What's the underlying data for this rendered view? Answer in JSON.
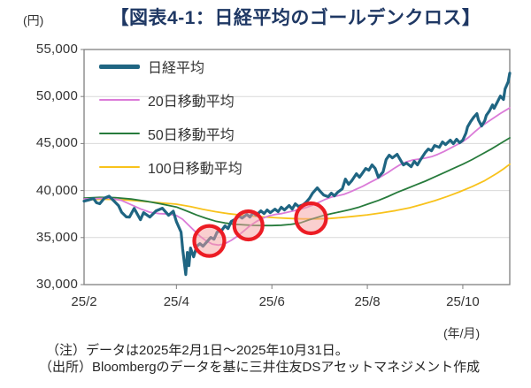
{
  "header": {
    "unit_label": "(円)",
    "title": "【図表4-1：日経平均のゴールデンクロス】",
    "title_color": "#1F3864"
  },
  "footer": {
    "note": "（注）データは2025年2月1日～2025年10月31日。",
    "source": "（出所）Bloombergのデータを基に三井住友DSアセットマネジメント作成"
  },
  "chart_data": {
    "type": "line",
    "title": "【図表4-1：日経平均のゴールデンクロス】",
    "ylabel": "(円)",
    "xlabel_unit": "(年/月)",
    "ylim": [
      30000,
      55000
    ],
    "grid": "horizontal-only",
    "grid_color": "#d9d9d9",
    "frame_color": "#7f7f7f",
    "legend_position": "top-left-inside",
    "x_note": "x = days since 2025-02-01 (data 2025/2/1 - 2025/10/31)",
    "x_range_days": [
      0,
      272
    ],
    "y_ticks": [
      {
        "value": 30000,
        "label": "30,000"
      },
      {
        "value": 35000,
        "label": "35,000"
      },
      {
        "value": 40000,
        "label": "40,000"
      },
      {
        "value": 45000,
        "label": "45,000"
      },
      {
        "value": 50000,
        "label": "50,000"
      },
      {
        "value": 55000,
        "label": "55,000"
      }
    ],
    "x_ticks": [
      {
        "day": 0,
        "label": "25/2"
      },
      {
        "day": 59,
        "label": "25/4"
      },
      {
        "day": 120,
        "label": "25/6"
      },
      {
        "day": 181,
        "label": "25/8"
      },
      {
        "day": 242,
        "label": "25/10"
      }
    ],
    "series": [
      {
        "name": "日経平均",
        "color": "#1f6582",
        "width": 3.2,
        "points": [
          [
            0,
            38870
          ],
          [
            3,
            39000
          ],
          [
            6,
            39150
          ],
          [
            8,
            38700
          ],
          [
            10,
            38600
          ],
          [
            13,
            39200
          ],
          [
            16,
            39400
          ],
          [
            19,
            38900
          ],
          [
            22,
            38400
          ],
          [
            24,
            37700
          ],
          [
            27,
            37200
          ],
          [
            29,
            37180
          ],
          [
            32,
            38100
          ],
          [
            36,
            36900
          ],
          [
            38,
            37650
          ],
          [
            42,
            37180
          ],
          [
            46,
            37840
          ],
          [
            50,
            38120
          ],
          [
            54,
            37370
          ],
          [
            57,
            37800
          ],
          [
            59,
            36700
          ],
          [
            62,
            35580
          ],
          [
            63,
            33780
          ],
          [
            65,
            31070
          ],
          [
            66,
            33420
          ],
          [
            67,
            32010
          ],
          [
            68,
            33890
          ],
          [
            70,
            32950
          ],
          [
            72,
            34080
          ],
          [
            74,
            34360
          ],
          [
            76,
            34080
          ],
          [
            79,
            34640
          ],
          [
            81,
            35020
          ],
          [
            83,
            34830
          ],
          [
            85,
            35580
          ],
          [
            88,
            35770
          ],
          [
            90,
            36240
          ],
          [
            92,
            35960
          ],
          [
            94,
            36700
          ],
          [
            97,
            36980
          ],
          [
            99,
            37270
          ],
          [
            101,
            37080
          ],
          [
            104,
            37460
          ],
          [
            106,
            37180
          ],
          [
            108,
            37650
          ],
          [
            110,
            37370
          ],
          [
            113,
            37840
          ],
          [
            115,
            37560
          ],
          [
            117,
            37930
          ],
          [
            119,
            37650
          ],
          [
            122,
            38030
          ],
          [
            124,
            37750
          ],
          [
            126,
            38220
          ],
          [
            128,
            37930
          ],
          [
            131,
            38400
          ],
          [
            133,
            38030
          ],
          [
            135,
            38590
          ],
          [
            137,
            38310
          ],
          [
            140,
            38500
          ],
          [
            142,
            38780
          ],
          [
            144,
            39150
          ],
          [
            146,
            39720
          ],
          [
            149,
            40280
          ],
          [
            151,
            39900
          ],
          [
            153,
            39530
          ],
          [
            156,
            39340
          ],
          [
            158,
            39720
          ],
          [
            160,
            39440
          ],
          [
            162,
            39810
          ],
          [
            165,
            40190
          ],
          [
            167,
            41220
          ],
          [
            169,
            40660
          ],
          [
            171,
            41030
          ],
          [
            174,
            41790
          ],
          [
            176,
            41410
          ],
          [
            178,
            41880
          ],
          [
            180,
            42350
          ],
          [
            182,
            42160
          ],
          [
            184,
            42730
          ],
          [
            186,
            42350
          ],
          [
            188,
            41410
          ],
          [
            191,
            41970
          ],
          [
            193,
            43290
          ],
          [
            195,
            43760
          ],
          [
            197,
            43480
          ],
          [
            200,
            43850
          ],
          [
            202,
            43290
          ],
          [
            204,
            42730
          ],
          [
            206,
            42920
          ],
          [
            209,
            42540
          ],
          [
            211,
            43100
          ],
          [
            213,
            42730
          ],
          [
            215,
            43290
          ],
          [
            218,
            44040
          ],
          [
            220,
            44420
          ],
          [
            222,
            44230
          ],
          [
            224,
            44790
          ],
          [
            227,
            44600
          ],
          [
            229,
            45170
          ],
          [
            231,
            44890
          ],
          [
            234,
            45360
          ],
          [
            236,
            44980
          ],
          [
            238,
            45450
          ],
          [
            240,
            45080
          ],
          [
            242,
            45360
          ],
          [
            244,
            46110
          ],
          [
            245,
            46770
          ],
          [
            247,
            47330
          ],
          [
            249,
            47800
          ],
          [
            251,
            48180
          ],
          [
            252,
            47520
          ],
          [
            254,
            46860
          ],
          [
            256,
            47420
          ],
          [
            257,
            47990
          ],
          [
            259,
            48460
          ],
          [
            261,
            49110
          ],
          [
            262,
            48740
          ],
          [
            264,
            49400
          ],
          [
            266,
            50050
          ],
          [
            268,
            49680
          ],
          [
            269,
            50800
          ],
          [
            271,
            51550
          ],
          [
            272,
            52490
          ]
        ]
      },
      {
        "name": "20日移動平均",
        "color": "#db7bd8",
        "width": 1.8,
        "points": [
          [
            0,
            39100
          ],
          [
            8,
            39150
          ],
          [
            16,
            39200
          ],
          [
            24,
            38950
          ],
          [
            30,
            38500
          ],
          [
            36,
            38050
          ],
          [
            42,
            37700
          ],
          [
            48,
            37550
          ],
          [
            54,
            37500
          ],
          [
            59,
            37350
          ],
          [
            63,
            36950
          ],
          [
            66,
            36450
          ],
          [
            70,
            35800
          ],
          [
            74,
            35150
          ],
          [
            78,
            34650
          ],
          [
            82,
            34300
          ],
          [
            86,
            34200
          ],
          [
            90,
            34350
          ],
          [
            94,
            34700
          ],
          [
            98,
            35150
          ],
          [
            102,
            35700
          ],
          [
            106,
            36250
          ],
          [
            110,
            36700
          ],
          [
            114,
            37050
          ],
          [
            118,
            37300
          ],
          [
            122,
            37450
          ],
          [
            126,
            37550
          ],
          [
            130,
            37700
          ],
          [
            134,
            37850
          ],
          [
            138,
            38000
          ],
          [
            142,
            38200
          ],
          [
            146,
            38450
          ],
          [
            150,
            38750
          ],
          [
            154,
            39050
          ],
          [
            158,
            39300
          ],
          [
            162,
            39450
          ],
          [
            166,
            39600
          ],
          [
            170,
            39850
          ],
          [
            174,
            40150
          ],
          [
            178,
            40450
          ],
          [
            182,
            40800
          ],
          [
            186,
            41150
          ],
          [
            190,
            41500
          ],
          [
            194,
            41900
          ],
          [
            198,
            42350
          ],
          [
            202,
            42750
          ],
          [
            206,
            43050
          ],
          [
            210,
            43250
          ],
          [
            214,
            43350
          ],
          [
            218,
            43450
          ],
          [
            222,
            43600
          ],
          [
            226,
            43850
          ],
          [
            230,
            44150
          ],
          [
            234,
            44500
          ],
          [
            238,
            44850
          ],
          [
            242,
            45200
          ],
          [
            246,
            45700
          ],
          [
            250,
            46300
          ],
          [
            254,
            46850
          ],
          [
            258,
            47300
          ],
          [
            262,
            47750
          ],
          [
            266,
            48200
          ],
          [
            269,
            48500
          ],
          [
            272,
            48800
          ]
        ]
      },
      {
        "name": "50日移動平均",
        "color": "#277b3c",
        "width": 1.8,
        "points": [
          [
            0,
            39200
          ],
          [
            10,
            39280
          ],
          [
            20,
            39250
          ],
          [
            30,
            39100
          ],
          [
            40,
            38850
          ],
          [
            50,
            38550
          ],
          [
            59,
            38250
          ],
          [
            66,
            37800
          ],
          [
            72,
            37400
          ],
          [
            78,
            37050
          ],
          [
            84,
            36750
          ],
          [
            90,
            36550
          ],
          [
            96,
            36420
          ],
          [
            102,
            36350
          ],
          [
            108,
            36300
          ],
          [
            114,
            36280
          ],
          [
            120,
            36280
          ],
          [
            126,
            36320
          ],
          [
            132,
            36400
          ],
          [
            138,
            36550
          ],
          [
            144,
            36900
          ],
          [
            148,
            37100
          ],
          [
            152,
            37300
          ],
          [
            158,
            37550
          ],
          [
            164,
            37750
          ],
          [
            170,
            37980
          ],
          [
            176,
            38250
          ],
          [
            182,
            38600
          ],
          [
            188,
            38950
          ],
          [
            194,
            39350
          ],
          [
            200,
            39800
          ],
          [
            206,
            40200
          ],
          [
            212,
            40600
          ],
          [
            218,
            41000
          ],
          [
            224,
            41450
          ],
          [
            230,
            41900
          ],
          [
            236,
            42350
          ],
          [
            242,
            42800
          ],
          [
            248,
            43300
          ],
          [
            254,
            43850
          ],
          [
            260,
            44400
          ],
          [
            266,
            45000
          ],
          [
            272,
            45600
          ]
        ]
      },
      {
        "name": "100日移動平均",
        "color": "#f8c21b",
        "width": 1.8,
        "points": [
          [
            0,
            39000
          ],
          [
            12,
            39080
          ],
          [
            24,
            39020
          ],
          [
            36,
            38880
          ],
          [
            48,
            38700
          ],
          [
            59,
            38550
          ],
          [
            68,
            38300
          ],
          [
            76,
            38000
          ],
          [
            84,
            37750
          ],
          [
            92,
            37550
          ],
          [
            100,
            37400
          ],
          [
            108,
            37280
          ],
          [
            116,
            37180
          ],
          [
            124,
            37100
          ],
          [
            132,
            37030
          ],
          [
            140,
            36980
          ],
          [
            148,
            36980
          ],
          [
            156,
            37020
          ],
          [
            164,
            37120
          ],
          [
            172,
            37260
          ],
          [
            181,
            37420
          ],
          [
            190,
            37620
          ],
          [
            199,
            37870
          ],
          [
            208,
            38170
          ],
          [
            216,
            38520
          ],
          [
            224,
            38920
          ],
          [
            232,
            39370
          ],
          [
            240,
            39870
          ],
          [
            248,
            40420
          ],
          [
            256,
            41050
          ],
          [
            264,
            41850
          ],
          [
            268,
            42300
          ],
          [
            272,
            42800
          ]
        ]
      }
    ],
    "annotations": [
      {
        "id": "golden-cross-1",
        "shape": "circle",
        "day": 80,
        "value": 34640,
        "radius_px": 17
      },
      {
        "id": "golden-cross-2",
        "shape": "circle",
        "day": 105,
        "value": 36300,
        "radius_px": 16
      },
      {
        "id": "golden-cross-3",
        "shape": "circle",
        "day": 145,
        "value": 37050,
        "radius_px": 17
      }
    ],
    "annotation_style": {
      "stroke": "#ec1c24",
      "stroke_width": 4.2,
      "fill": "rgba(246,160,160,0.5)"
    }
  }
}
